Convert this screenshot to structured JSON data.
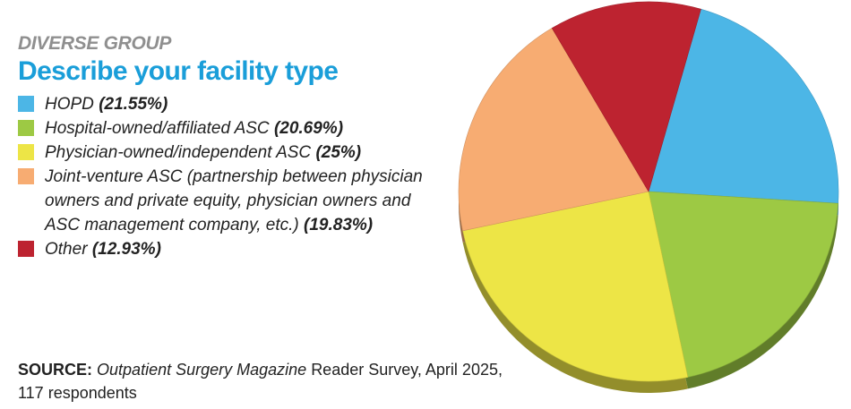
{
  "kicker": "DIVERSE GROUP",
  "title": "Describe your facility type",
  "chart_data": {
    "type": "pie",
    "title": "Describe your facility type",
    "categories": [
      "HOPD",
      "Hospital-owned/affiliated ASC",
      "Physician-owned/independent ASC",
      "Joint-venture ASC (partnership between physician owners and private equity, physician owners and ASC management company, etc.)",
      "Other"
    ],
    "values": [
      21.55,
      20.69,
      25,
      19.83,
      12.93
    ],
    "colors": [
      "#4cb6e6",
      "#9dc944",
      "#ede546",
      "#f7ac72",
      "#bd2330"
    ],
    "legend": [
      {
        "text": "HOPD",
        "value_label": "(21.55%)"
      },
      {
        "text": "Hospital-owned/affiliated ASC",
        "value_label": "(20.69%)"
      },
      {
        "text": "Physician-owned/independent ASC",
        "value_label": "(25%)"
      },
      {
        "text": "Joint-venture ASC (partnership between physician owners and private equity, physi­cian owners and ASC management compa­ny, etc.)",
        "value_label": "(19.83%)"
      },
      {
        "text": "Other",
        "value_label": "(12.93%)"
      }
    ]
  },
  "source": {
    "label": "SOURCE:",
    "publication": "Outpatient Surgery Magazine",
    "rest": "Reader Survey, April 2025, 117 respondents"
  }
}
